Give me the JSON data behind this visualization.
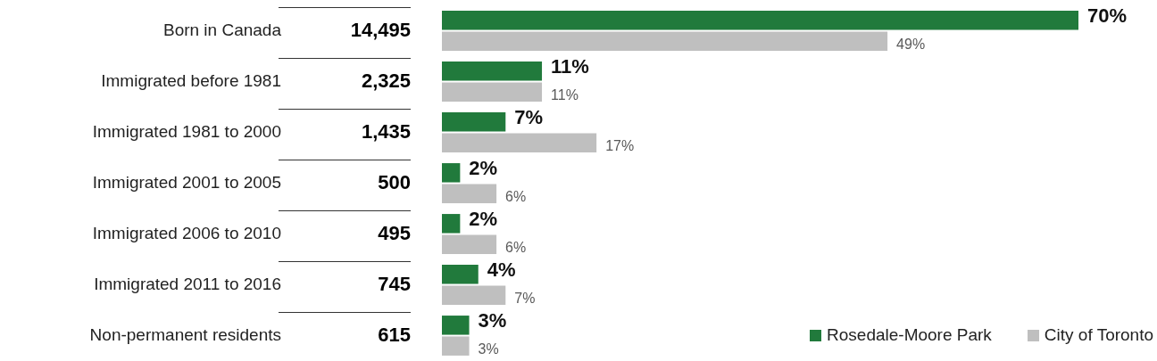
{
  "chart_data": {
    "type": "bar",
    "orientation": "horizontal",
    "legend": "bottom right",
    "categories": [
      "Born in Canada",
      "Immigrated before 1981",
      "Immigrated 1981 to 2000",
      "Immigrated 2001 to 2005",
      "Immigrated 2006 to 2010",
      "Immigrated 2011 to 2016",
      "Non-permanent residents"
    ],
    "series": [
      {
        "name": "Rosedale-Moore Park",
        "color": "#217a3c",
        "values": [
          70,
          11,
          7,
          2,
          2,
          4,
          3
        ],
        "value_labels": [
          "70%",
          "11%",
          "7%",
          "2%",
          "2%",
          "4%",
          "3%"
        ]
      },
      {
        "name": "City of Toronto",
        "color": "#bfbfbf",
        "values": [
          49,
          11,
          17,
          6,
          6,
          7,
          3
        ],
        "value_labels": [
          "49%",
          "11%",
          "17%",
          "6%",
          "6%",
          "7%",
          "3%"
        ]
      }
    ],
    "annotations": [
      "14,495",
      "2,325",
      "1,435",
      "500",
      "495",
      "745",
      "615"
    ]
  }
}
